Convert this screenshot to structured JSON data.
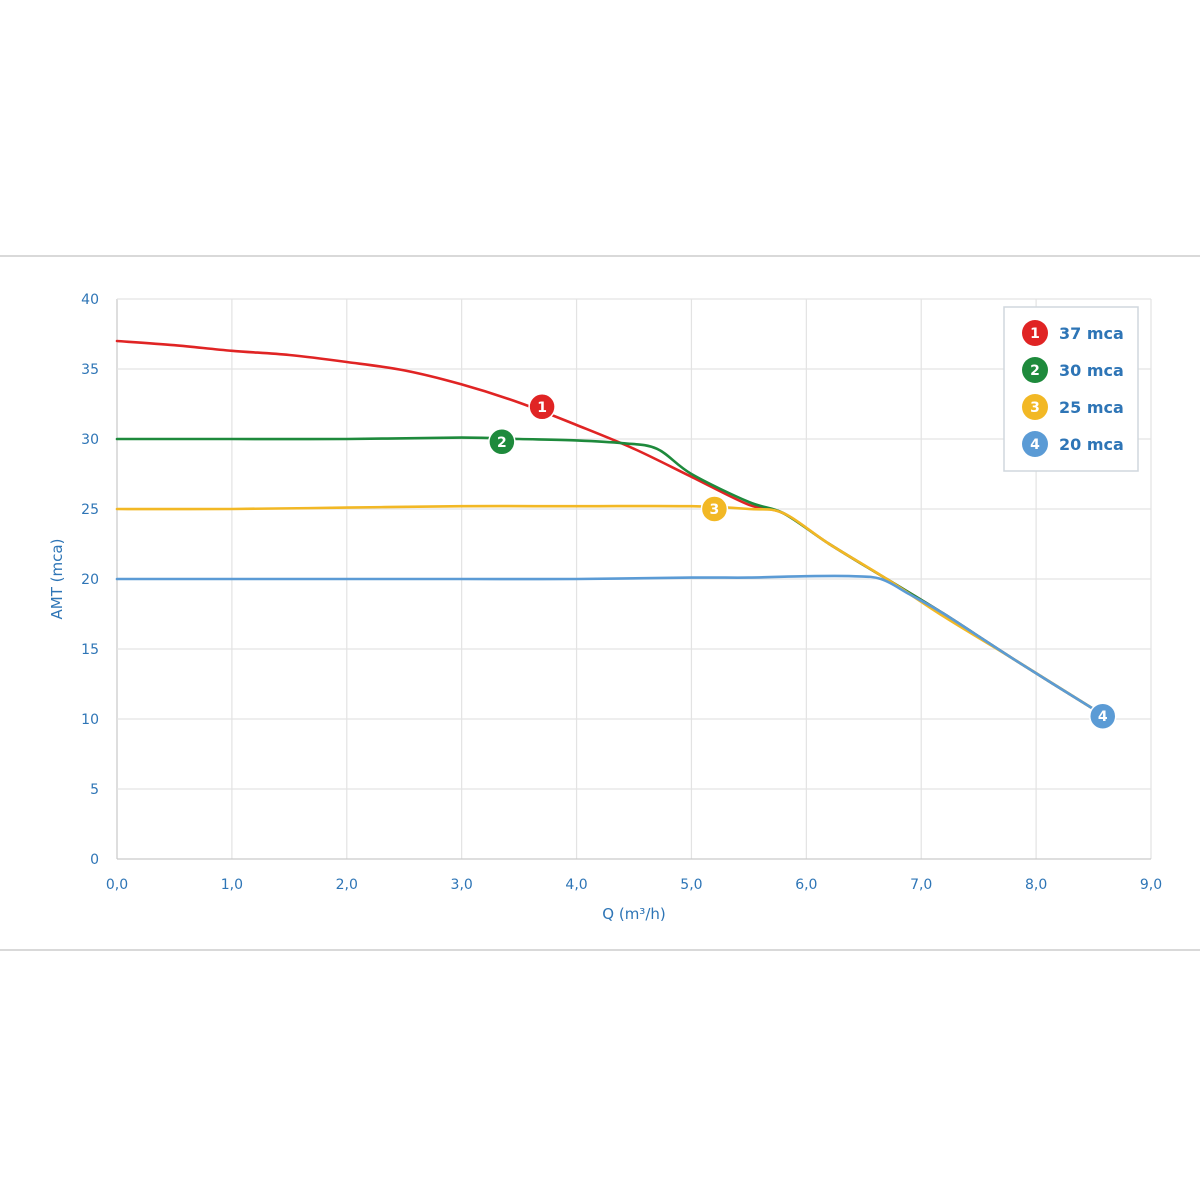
{
  "chart_data": {
    "type": "line",
    "xlabel": "Q (m³/h)",
    "ylabel": "AMT (mca)",
    "xlim": [
      0,
      9
    ],
    "ylim": [
      0,
      40
    ],
    "x_ticks": [
      "0,0",
      "1,0",
      "2,0",
      "3,0",
      "4,0",
      "5,0",
      "6,0",
      "7,0",
      "8,0",
      "9,0"
    ],
    "y_ticks": [
      "0",
      "5",
      "10",
      "15",
      "20",
      "25",
      "30",
      "35",
      "40"
    ],
    "grid": true,
    "legend_position": "top-right",
    "series": [
      {
        "name": "37 mca",
        "marker": "1",
        "color": "#e02424",
        "x": [
          0.0,
          0.5,
          1.0,
          1.5,
          2.0,
          2.5,
          3.0,
          3.5,
          4.0,
          4.5,
          5.0,
          5.5,
          5.8,
          6.2,
          6.7,
          7.2,
          7.8,
          8.6
        ],
        "y": [
          37.0,
          36.7,
          36.3,
          36.0,
          35.5,
          34.9,
          33.9,
          32.6,
          31.0,
          29.3,
          27.3,
          25.3,
          24.7,
          22.5,
          20.0,
          17.5,
          14.3,
          10.2
        ],
        "marker_at": [
          3.7,
          32.3
        ]
      },
      {
        "name": "30 mca",
        "marker": "2",
        "color": "#1e8a3c",
        "x": [
          0.0,
          1.0,
          2.0,
          3.0,
          3.5,
          4.0,
          4.4,
          4.7,
          5.0,
          5.5,
          5.8,
          6.2,
          6.7,
          7.2,
          7.8,
          8.6
        ],
        "y": [
          30.0,
          30.0,
          30.0,
          30.1,
          30.0,
          29.9,
          29.7,
          29.3,
          27.5,
          25.5,
          24.7,
          22.5,
          20.0,
          17.5,
          14.3,
          10.2
        ],
        "marker_at": [
          3.35,
          29.8
        ]
      },
      {
        "name": "25 mca",
        "marker": "3",
        "color": "#f2b825",
        "x": [
          0.0,
          1.0,
          2.0,
          3.0,
          4.0,
          5.0,
          5.5,
          5.8,
          6.2,
          6.7,
          7.2,
          7.8,
          8.6
        ],
        "y": [
          25.0,
          25.0,
          25.1,
          25.2,
          25.2,
          25.2,
          25.0,
          24.7,
          22.5,
          20.0,
          17.3,
          14.3,
          10.2
        ],
        "marker_at": [
          5.2,
          25.0
        ]
      },
      {
        "name": "20 mca",
        "marker": "4",
        "color": "#5b9bd5",
        "x": [
          0.0,
          1.0,
          2.0,
          3.0,
          4.0,
          5.0,
          5.5,
          6.0,
          6.4,
          6.65,
          6.9,
          7.2,
          7.8,
          8.6
        ],
        "y": [
          20.0,
          20.0,
          20.0,
          20.0,
          20.0,
          20.1,
          20.1,
          20.2,
          20.2,
          20.0,
          18.9,
          17.5,
          14.3,
          10.2
        ],
        "marker_at": [
          8.58,
          10.2
        ]
      }
    ]
  }
}
